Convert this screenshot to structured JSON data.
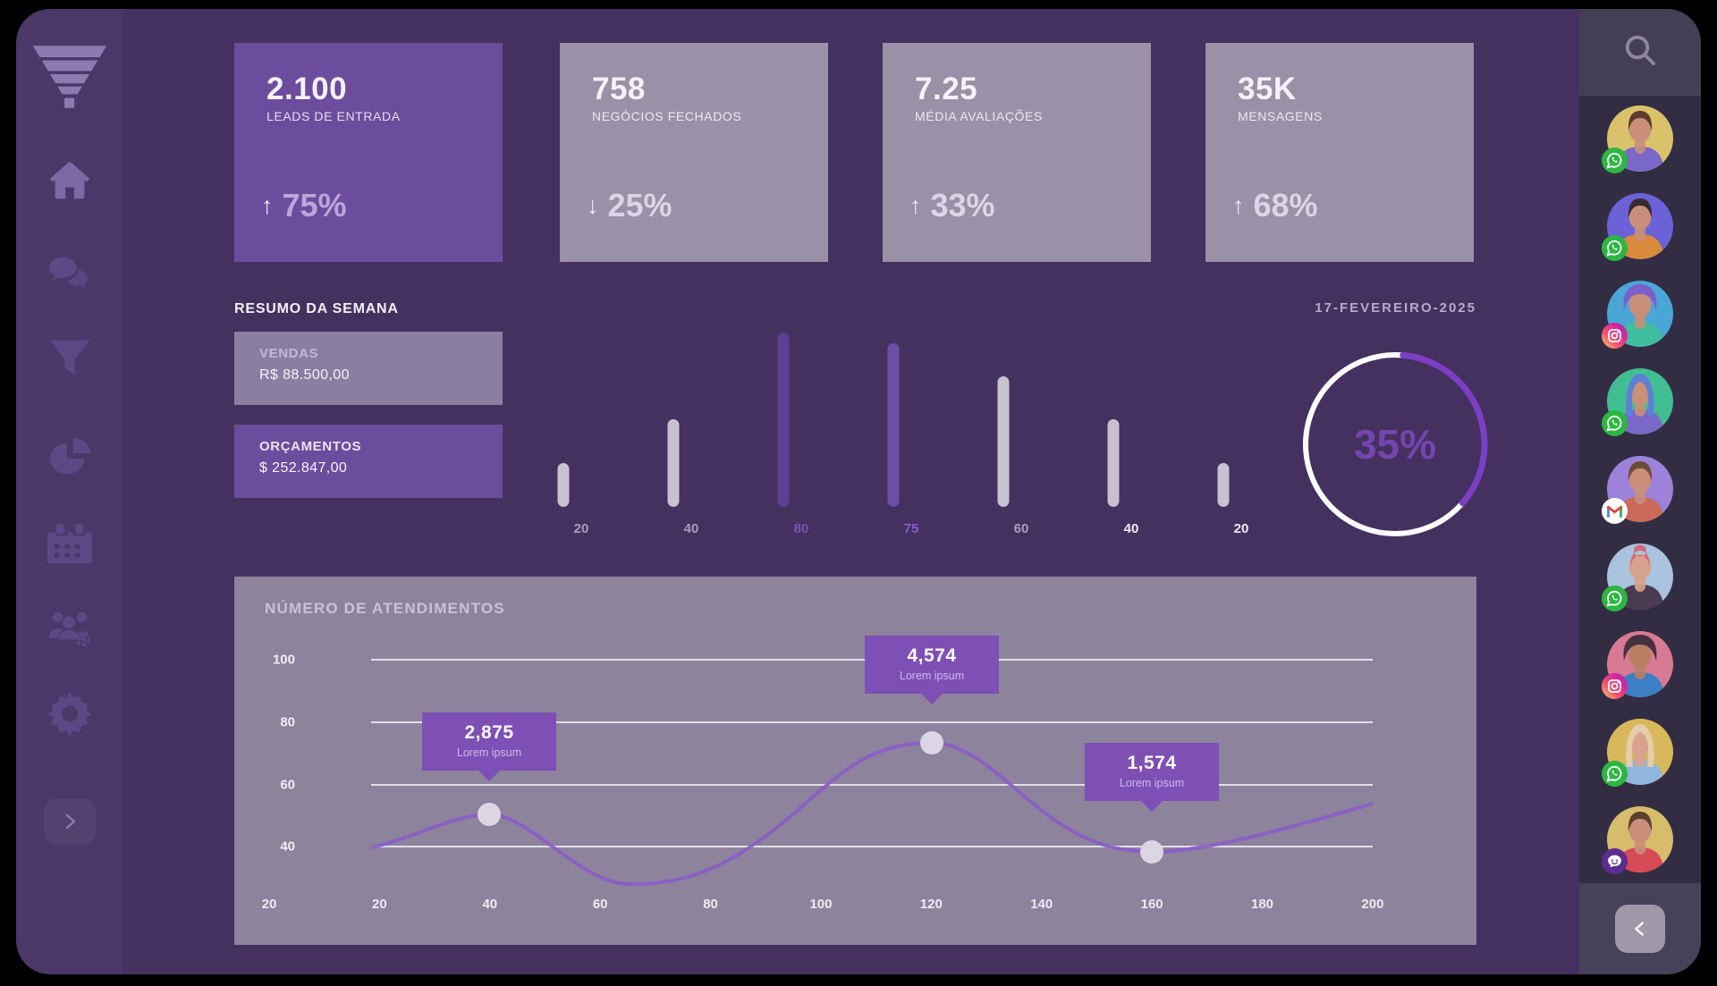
{
  "theme": {
    "page_bg": "#000000",
    "main_bg": "#443160",
    "left_sidebar_bg": "#4B3768",
    "right_sidebar_bg": "#332D44",
    "accent_purple": "#6C4C9D",
    "card_light": "#9A90A8",
    "panel_bg": "#8D839D",
    "tooltip_bg": "#7E4FB5",
    "gauge_arc": "#7B3FC4"
  },
  "left_sidebar": {
    "logo_icon": "funnel-logo",
    "nav_icons": [
      "home",
      "chat",
      "filter",
      "pie-chart",
      "calendar",
      "team-settings",
      "settings"
    ],
    "active_item": "home",
    "expand_icon": "chevron-right"
  },
  "stat_cards": [
    {
      "value": "2.100",
      "label": "LEADS DE ENTRADA",
      "trend_direction": "up",
      "trend_arrow": "↑",
      "trend": "75%",
      "style": "purple"
    },
    {
      "value": "758",
      "label": "NEGÓCIOS FECHADOS",
      "trend_direction": "down",
      "trend_arrow": "↓",
      "trend": "25%",
      "style": "light"
    },
    {
      "value": "7.25",
      "label": "MÉDIA AVALIAÇÕES",
      "trend_direction": "up",
      "trend_arrow": "↑",
      "trend": "33%",
      "style": "light"
    },
    {
      "value": "35K",
      "label": "MENSAGENS",
      "trend_direction": "up",
      "trend_arrow": "↑",
      "trend": "68%",
      "style": "light"
    }
  ],
  "week_summary": {
    "title": "RESUMO DA SEMANA",
    "date": "17-FEVEREIRO-2025",
    "vendas": {
      "label": "VENDAS",
      "value": "R$ 88.500,00"
    },
    "orcamentos": {
      "label": "ORÇAMENTOS",
      "value": "$ 252.847,00"
    },
    "gauge": {
      "percent_label": "35%",
      "percent": 35
    }
  },
  "chart_data": [
    {
      "type": "bar",
      "categories": [
        "20",
        "40",
        "80",
        "75",
        "60",
        "40",
        "20"
      ],
      "values": [
        20,
        40,
        80,
        75,
        60,
        40,
        20
      ],
      "ylim": [
        0,
        80
      ],
      "bar_colors": [
        "#C8C1D2",
        "#C8C1D2",
        "#5E3F94",
        "#6E4DA6",
        "#C8C1D2",
        "#C8C1D2",
        "#C8C1D2"
      ],
      "label_colors": [
        "#A89DB9",
        "#A89DB9",
        "#7A52B5",
        "#8A5BD1",
        "#A89DB9",
        "#F0EDF4",
        "#F0EDF4"
      ],
      "title": "",
      "xlabel": "",
      "ylabel": ""
    },
    {
      "type": "line",
      "title": "NÚMERO DE ATENDIMENTOS",
      "y_ticks": [
        "100",
        "80",
        "60",
        "40"
      ],
      "x_ticks": [
        "20",
        "20",
        "40",
        "60",
        "80",
        "100",
        "120",
        "140",
        "160",
        "180",
        "200"
      ],
      "ylim": [
        40,
        100
      ],
      "grid": true,
      "points": [
        {
          "x": 40,
          "y": 50,
          "label": "2,875",
          "sublabel": "Lorem ipsum"
        },
        {
          "x": 120,
          "y": 73,
          "label": "4,574",
          "sublabel": "Lorem ipsum"
        },
        {
          "x": 160,
          "y": 38,
          "label": "1,574",
          "sublabel": "Lorem ipsum"
        }
      ]
    }
  ],
  "right_sidebar": {
    "search_icon": "search",
    "back_icon": "chevron-left",
    "contacts": [
      {
        "badge": "whatsapp",
        "bg": "#D9C269",
        "hair": "#5C3A2E",
        "hair_style": "short",
        "shirt": "#7A68C9",
        "skin": "#C98F7A"
      },
      {
        "badge": "whatsapp",
        "bg": "#6A62D6",
        "hair": "#3A2A33",
        "hair_style": "short",
        "shirt": "#D98A3D",
        "skin": "#C98F7A"
      },
      {
        "badge": "instagram",
        "bg": "#4BA6D8",
        "hair": "#7C5FC9",
        "hair_style": "curly",
        "shirt": "#3FBFA0",
        "skin": "#C98F7A"
      },
      {
        "badge": "whatsapp",
        "bg": "#41BD92",
        "hair": "#5D7FD6",
        "hair_style": "long",
        "shirt": "#7A68C9",
        "skin": "#C98F7A"
      },
      {
        "badge": "gmail",
        "bg": "#9C82D8",
        "hair": "#6E4A38",
        "hair_style": "short",
        "shirt": "#C96A5A",
        "skin": "#C98F7A"
      },
      {
        "badge": "whatsapp",
        "bg": "#A9C3DF",
        "hair": "#D66A78",
        "hair_style": "bun",
        "shirt": "#4A3A52",
        "skin": "#D8A38E"
      },
      {
        "badge": "instagram",
        "bg": "#D87A93",
        "hair": "#45313F",
        "hair_style": "curly",
        "shirt": "#3D7FC4",
        "skin": "#B97F63"
      },
      {
        "badge": "whatsapp",
        "bg": "#D9B85C",
        "hair": "#E5CDA8",
        "hair_style": "long",
        "shirt": "#8FB6DC",
        "skin": "#D8A38E"
      },
      {
        "badge": "chat",
        "bg": "#D6BC6B",
        "hair": "#5C4030",
        "hair_style": "short",
        "shirt": "#D64A55",
        "skin": "#C98F7A"
      }
    ]
  }
}
